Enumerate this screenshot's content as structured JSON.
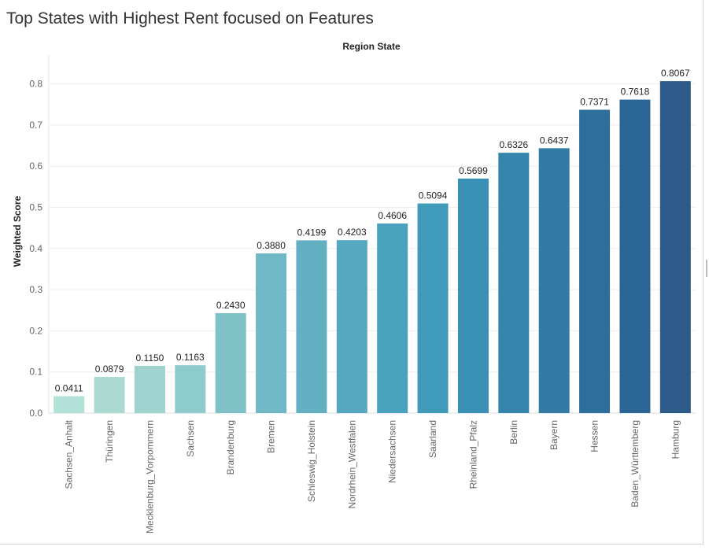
{
  "title": "Top States with Highest Rent focused on Features",
  "chart_data": {
    "type": "bar",
    "title": "Top States with Highest Rent focused on Features",
    "xlabel": "Region State",
    "ylabel": "Weighted Score",
    "ylim": [
      0,
      0.87
    ],
    "yticks": [
      "0.0",
      "0.1",
      "0.2",
      "0.3",
      "0.4",
      "0.5",
      "0.6",
      "0.7",
      "0.8"
    ],
    "grid": true,
    "categories": [
      "Sachsen_Anhalt",
      "Thüringen",
      "Mecklenburg_Vorpommern",
      "Sachsen",
      "Brandenburg",
      "Bremen",
      "Schleswig_Holstein",
      "Nordrhein_Westfalen",
      "Niedersachsen",
      "Saarland",
      "Rheinland_Pfalz",
      "Berlin",
      "Bayern",
      "Hessen",
      "Baden_Württemberg",
      "Hamburg"
    ],
    "values": [
      0.0411,
      0.0879,
      0.115,
      0.1163,
      0.243,
      0.388,
      0.4199,
      0.4203,
      0.4606,
      0.5094,
      0.5699,
      0.6326,
      0.6437,
      0.7371,
      0.7618,
      0.8067
    ],
    "value_labels": [
      "0.0411",
      "0.0879",
      "0.1150",
      "0.1163",
      "0.2430",
      "0.3880",
      "0.4199",
      "0.4203",
      "0.4606",
      "0.5094",
      "0.5699",
      "0.6326",
      "0.6437",
      "0.7371",
      "0.7618",
      "0.8067"
    ],
    "colors": [
      "#b2e2d7",
      "#aadad2",
      "#9ed3cf",
      "#8ecbcc",
      "#80c1c8",
      "#71b8c6",
      "#62b0c2",
      "#55a8c0",
      "#49a1bd",
      "#409aba",
      "#3a8fb4",
      "#3585ad",
      "#317ba5",
      "#2d6e9d",
      "#2b6595",
      "#2c5a89"
    ]
  }
}
